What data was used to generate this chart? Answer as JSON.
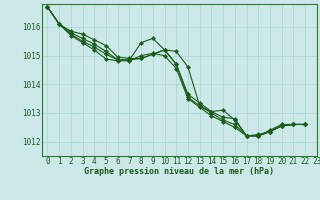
{
  "title": "Graphe pression niveau de la mer (hPa)",
  "background_color": "#cce8e8",
  "grid_color": "#aad4d4",
  "line_color": "#1a5c1a",
  "marker_color": "#1a5c1a",
  "spine_color": "#2d7a2d",
  "xlim": [
    -0.5,
    23
  ],
  "ylim": [
    1011.5,
    1016.8
  ],
  "yticks": [
    1012,
    1013,
    1014,
    1015,
    1016
  ],
  "xticks": [
    0,
    1,
    2,
    3,
    4,
    5,
    6,
    7,
    8,
    9,
    10,
    11,
    12,
    13,
    14,
    15,
    16,
    17,
    18,
    19,
    20,
    21,
    22,
    23
  ],
  "series": [
    [
      1016.7,
      1016.1,
      1015.85,
      1015.75,
      1015.55,
      1015.35,
      1014.95,
      1014.9,
      1014.9,
      1015.05,
      1015.2,
      1015.15,
      1014.6,
      1013.25,
      1013.05,
      1013.1,
      1012.75,
      1012.2,
      1012.2,
      1012.4,
      1012.6,
      1012.6,
      1012.6
    ],
    [
      1016.7,
      1016.1,
      1015.8,
      1015.6,
      1015.4,
      1015.15,
      1014.85,
      1014.85,
      1015.45,
      1015.6,
      1015.2,
      1014.7,
      1013.65,
      1013.35,
      1013.05,
      1012.85,
      1012.8,
      1012.2,
      1012.25,
      1012.35,
      1012.55,
      1012.6,
      1012.6
    ],
    [
      1016.7,
      1016.1,
      1015.75,
      1015.5,
      1015.3,
      1015.05,
      1014.85,
      1014.85,
      1014.9,
      1015.05,
      1015.2,
      1014.7,
      1013.55,
      1013.25,
      1013.0,
      1012.75,
      1012.6,
      1012.2,
      1012.2,
      1012.35,
      1012.55,
      1012.6,
      1012.6
    ],
    [
      1016.7,
      1016.1,
      1015.7,
      1015.45,
      1015.2,
      1014.88,
      1014.82,
      1014.82,
      1015.0,
      1015.08,
      1015.0,
      1014.55,
      1013.5,
      1013.2,
      1012.9,
      1012.7,
      1012.5,
      1012.2,
      1012.2,
      1012.35,
      1012.55,
      1012.6,
      1012.6
    ]
  ],
  "tick_fontsize": 5.5,
  "label_fontsize": 6.0,
  "linewidth": 0.8,
  "markersize": 2.2
}
